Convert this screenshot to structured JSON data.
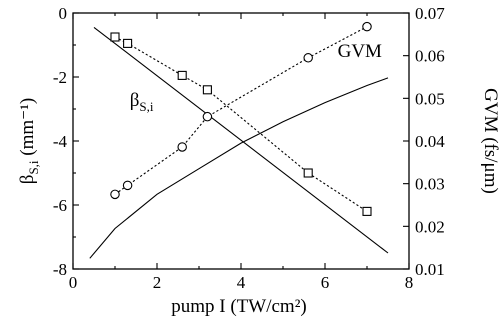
{
  "chart_data": {
    "type": "line",
    "xlabel": "pump I  (TW/cm²)",
    "ylabel_left": "β",
    "ylabel_left_sub": "S,i",
    "ylabel_left_unit": " (mm⁻¹)",
    "ylabel_right": "GVM (fs/μm)",
    "xlim": [
      0,
      8
    ],
    "ylim_left": [
      -8,
      0
    ],
    "ylim_right": [
      0.01,
      0.07
    ],
    "x_ticks": [
      0,
      2,
      4,
      6,
      8
    ],
    "y_left_ticks": [
      -8,
      -6,
      -4,
      -2,
      0
    ],
    "y_right_ticks": [
      0.01,
      0.02,
      0.03,
      0.04,
      0.05,
      0.06,
      0.07
    ],
    "x_tick_labels": [
      "0",
      "2",
      "4",
      "6",
      "8"
    ],
    "y_left_tick_labels": [
      "-8",
      "-6",
      "-4",
      "-2",
      "0"
    ],
    "y_right_tick_labels": [
      "0.01",
      "0.02",
      "0.03",
      "0.04",
      "0.05",
      "0.06",
      "0.07"
    ],
    "annotations": [
      {
        "text": "β",
        "sub": "S,i",
        "x": 1.35,
        "y": -2.9,
        "axis": "left"
      },
      {
        "text": "GVM",
        "x": 6.3,
        "y": 0.0597,
        "axis": "right"
      }
    ],
    "series": [
      {
        "axis": "left",
        "style": "solid",
        "x": [
          0.5,
          7.5
        ],
        "y": [
          -0.45,
          -7.5
        ]
      },
      {
        "axis": "left",
        "style": "dotted",
        "marker": "square",
        "x": [
          1.0,
          1.3,
          2.6,
          3.2,
          5.6,
          7.0
        ],
        "y": [
          -0.75,
          -0.95,
          -1.95,
          -2.4,
          -5.0,
          -6.2
        ]
      },
      {
        "axis": "right",
        "style": "solid",
        "x": [
          0.4,
          1.0,
          2.0,
          3.0,
          4.0,
          5.0,
          6.0,
          7.0,
          7.5
        ],
        "y": [
          0.0125,
          0.0195,
          0.0275,
          0.0335,
          0.0395,
          0.0445,
          0.049,
          0.053,
          0.0548
        ]
      },
      {
        "axis": "right",
        "style": "dotted",
        "marker": "circle",
        "x": [
          1.0,
          1.3,
          2.6,
          3.2,
          5.6,
          7.0
        ],
        "y": [
          0.0275,
          0.0296,
          0.0386,
          0.0457,
          0.0595,
          0.0668
        ]
      }
    ]
  }
}
